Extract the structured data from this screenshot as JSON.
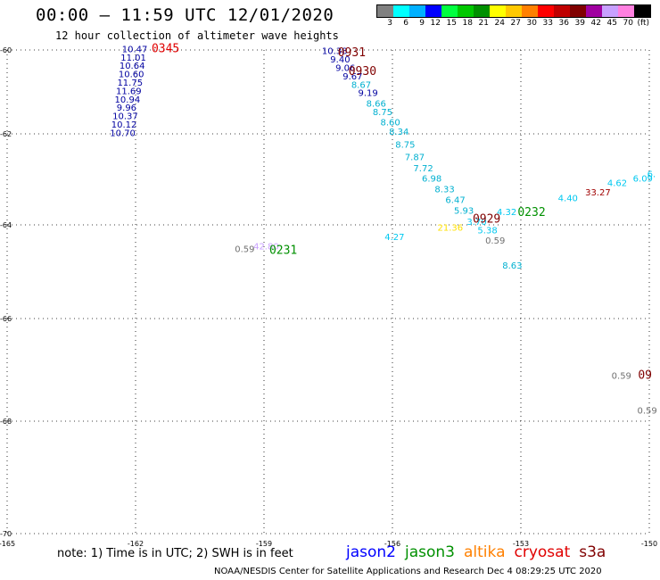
{
  "header": {
    "title": "00:00 – 11:59 UTC 12/01/2020",
    "subtitle": "12 hour collection of altimeter wave heights"
  },
  "legend": {
    "unit": "(ft)",
    "bins": [
      {
        "label": "3",
        "color": "#808080"
      },
      {
        "label": "6",
        "color": "#00ffff"
      },
      {
        "label": "9",
        "color": "#00b0ff"
      },
      {
        "label": "12",
        "color": "#0000ff"
      },
      {
        "label": "15",
        "color": "#00ff40"
      },
      {
        "label": "18",
        "color": "#00c800"
      },
      {
        "label": "21",
        "color": "#009000"
      },
      {
        "label": "24",
        "color": "#ffff00"
      },
      {
        "label": "27",
        "color": "#ffc800"
      },
      {
        "label": "30",
        "color": "#ff8000"
      },
      {
        "label": "33",
        "color": "#ff0000"
      },
      {
        "label": "36",
        "color": "#c00000"
      },
      {
        "label": "39",
        "color": "#800000"
      },
      {
        "label": "42",
        "color": "#a000a0"
      },
      {
        "label": "45",
        "color": "#c8a0ff"
      },
      {
        "label": "70",
        "color": "#ff80e0"
      },
      {
        "label": "",
        "color": "#000000"
      }
    ]
  },
  "axes": {
    "lon_ticks": [
      "-165",
      "-162",
      "-159",
      "-156",
      "-153",
      "-150"
    ],
    "lat_ticks": [
      "-60",
      "-62",
      "-64",
      "-66",
      "-68",
      "-70"
    ]
  },
  "chart_data": {
    "type": "scatter",
    "xlabel": "",
    "ylabel": "",
    "xlim": [
      -165,
      -150
    ],
    "ylim": [
      -70,
      -60
    ],
    "grid": true,
    "swh_labels": [
      {
        "text": "10.47",
        "lon": -162.02,
        "lat": -60.05,
        "color": "#0000a0"
      },
      {
        "text": "11.01",
        "lon": -162.05,
        "lat": -60.25,
        "color": "#0000a0"
      },
      {
        "text": "10.64",
        "lon": -162.08,
        "lat": -60.45,
        "color": "#0000a0"
      },
      {
        "text": "10.60",
        "lon": -162.1,
        "lat": -60.65,
        "color": "#0000a0"
      },
      {
        "text": "11.75",
        "lon": -162.13,
        "lat": -60.85,
        "color": "#0000a0"
      },
      {
        "text": "11.69",
        "lon": -162.16,
        "lat": -61.05,
        "color": "#0000a0"
      },
      {
        "text": "10.94",
        "lon": -162.19,
        "lat": -61.25,
        "color": "#0000a0"
      },
      {
        "text": "9.96",
        "lon": -162.21,
        "lat": -61.45,
        "color": "#0000a0"
      },
      {
        "text": "10.37",
        "lon": -162.24,
        "lat": -61.65,
        "color": "#0000a0"
      },
      {
        "text": "10.12",
        "lon": -162.27,
        "lat": -61.85,
        "color": "#0000a0"
      },
      {
        "text": "10.70",
        "lon": -162.3,
        "lat": -62.05,
        "color": "#0000a0"
      },
      {
        "text": "10.38",
        "lon": -157.35,
        "lat": -60.1,
        "color": "#0000a0"
      },
      {
        "text": "9.40",
        "lon": -157.22,
        "lat": -60.3,
        "color": "#0000a0"
      },
      {
        "text": "9.06",
        "lon": -157.1,
        "lat": -60.5,
        "color": "#0000a0"
      },
      {
        "text": "9.67",
        "lon": -156.93,
        "lat": -60.7,
        "color": "#0000a0"
      },
      {
        "text": "8.67",
        "lon": -156.73,
        "lat": -60.9,
        "color": "#00b0d0"
      },
      {
        "text": "9.19",
        "lon": -156.57,
        "lat": -61.1,
        "color": "#0000a0"
      },
      {
        "text": "8.66",
        "lon": -156.38,
        "lat": -61.35,
        "color": "#00b0d0"
      },
      {
        "text": "8.75",
        "lon": -156.23,
        "lat": -61.55,
        "color": "#00b0d0"
      },
      {
        "text": "8.60",
        "lon": -156.05,
        "lat": -61.8,
        "color": "#00b0d0"
      },
      {
        "text": "8.34",
        "lon": -155.85,
        "lat": -62.02,
        "color": "#00b0d0"
      },
      {
        "text": "8.75",
        "lon": -155.7,
        "lat": -62.3,
        "color": "#00b0d0"
      },
      {
        "text": "7.87",
        "lon": -155.48,
        "lat": -62.58,
        "color": "#00b0d0"
      },
      {
        "text": "7.72",
        "lon": -155.28,
        "lat": -62.82,
        "color": "#00b0d0"
      },
      {
        "text": "6.98",
        "lon": -155.08,
        "lat": -63.05,
        "color": "#00b0d0"
      },
      {
        "text": "8.33",
        "lon": -154.78,
        "lat": -63.28,
        "color": "#00b0d0"
      },
      {
        "text": "6.47",
        "lon": -154.53,
        "lat": -63.52,
        "color": "#00b0d0"
      },
      {
        "text": "5.93",
        "lon": -154.33,
        "lat": -63.75,
        "color": "#00b0d0"
      },
      {
        "text": "3.70",
        "lon": -154.03,
        "lat": -64.0,
        "color": "#00c8f0"
      },
      {
        "text": "5.38",
        "lon": -153.78,
        "lat": -64.18,
        "color": "#00c8f0"
      },
      {
        "text": "0.59",
        "lon": -153.6,
        "lat": -64.4,
        "color": "#707070"
      },
      {
        "text": "8.63",
        "lon": -153.2,
        "lat": -64.93,
        "color": "#00b0d0"
      },
      {
        "text": "4.32",
        "lon": -153.33,
        "lat": -63.78,
        "color": "#00c8f0"
      },
      {
        "text": "4.40",
        "lon": -151.9,
        "lat": -63.48,
        "color": "#00c8f0"
      },
      {
        "text": "33.27",
        "lon": -151.2,
        "lat": -63.35,
        "color": "#a00000"
      },
      {
        "text": "4.62",
        "lon": -150.75,
        "lat": -63.15,
        "color": "#00c8f0"
      },
      {
        "text": "6.09",
        "lon": -150.15,
        "lat": -63.05,
        "color": "#00c8f0"
      },
      {
        "text": "6.",
        "lon": -149.95,
        "lat": -62.95,
        "color": "#00c8f0"
      },
      {
        "text": "21.36",
        "lon": -154.65,
        "lat": -64.12,
        "color": "#ffe000"
      },
      {
        "text": "4.27",
        "lon": -155.95,
        "lat": -64.32,
        "color": "#00c8f0"
      },
      {
        "text": "0.59",
        "lon": -159.45,
        "lat": -64.58,
        "color": "#707070"
      },
      {
        "text": "42.80",
        "lon": -158.95,
        "lat": -64.52,
        "color": "#c8a0ff"
      },
      {
        "text": "0.59",
        "lon": -150.65,
        "lat": -67.17,
        "color": "#707070"
      },
      {
        "text": "0.59",
        "lon": -150.05,
        "lat": -67.85,
        "color": "#707070"
      }
    ],
    "pass_times": [
      {
        "text": "0345",
        "lon": -161.3,
        "lat": -60.05,
        "color": "#e00000"
      },
      {
        "text": "0931",
        "lon": -156.95,
        "lat": -60.15,
        "color": "#800000"
      },
      {
        "text": "0930",
        "lon": -156.7,
        "lat": -60.6,
        "color": "#800000"
      },
      {
        "text": "0929",
        "lon": -153.8,
        "lat": -63.95,
        "color": "#800000"
      },
      {
        "text": "0232",
        "lon": -152.75,
        "lat": -63.8,
        "color": "#009000"
      },
      {
        "text": "0231",
        "lon": -158.55,
        "lat": -64.62,
        "color": "#009000"
      },
      {
        "text": "09",
        "lon": -150.1,
        "lat": -67.17,
        "color": "#800000"
      }
    ]
  },
  "footer": {
    "note": "note: 1) Time is in UTC; 2) SWH is in feet",
    "satellites": [
      {
        "name": "jason2",
        "color": "#0000ff"
      },
      {
        "name": "jason3",
        "color": "#009000"
      },
      {
        "name": "altika",
        "color": "#ff8000"
      },
      {
        "name": "cryosat",
        "color": "#e00000"
      },
      {
        "name": "s3a",
        "color": "#800000"
      }
    ],
    "credit": "NOAA/NESDIS Center for Satellite Applications and Research    Dec  4 08:29:25 UTC 2020"
  }
}
